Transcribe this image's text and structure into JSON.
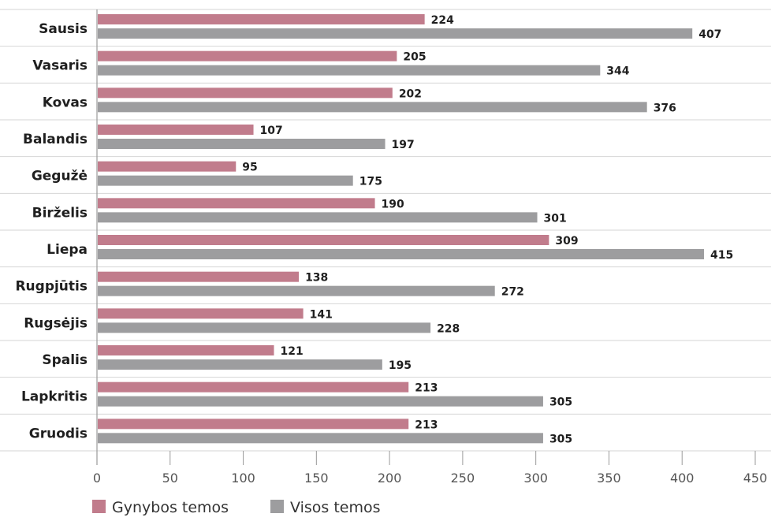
{
  "colors": {
    "series_a": "#c17c8c",
    "series_b": "#9d9d9f",
    "grid": "#d6d6d6",
    "axis": "#9a9a9a"
  },
  "legend": {
    "items": [
      {
        "label": "Gynybos temos"
      },
      {
        "label": "Visos temos"
      }
    ]
  },
  "chart_data": {
    "type": "bar",
    "orientation": "horizontal",
    "categories": [
      "Sausis",
      "Vasaris",
      "Kovas",
      "Balandis",
      "Gegužė",
      "Birželis",
      "Liepa",
      "Rugpjūtis",
      "Rugsėjis",
      "Spalis",
      "Lapkritis",
      "Gruodis"
    ],
    "series": [
      {
        "name": "Gynybos temos",
        "values": [
          224,
          205,
          202,
          107,
          95,
          190,
          309,
          138,
          141,
          121,
          213,
          213
        ]
      },
      {
        "name": "Visos temos",
        "values": [
          407,
          344,
          376,
          197,
          175,
          301,
          415,
          272,
          228,
          195,
          305,
          305
        ]
      }
    ],
    "xlim": [
      0,
      450
    ],
    "ticks": [
      0,
      50,
      100,
      150,
      200,
      250,
      300,
      350,
      400,
      450
    ],
    "grid": "horizontal separators between categories",
    "legend_position": "bottom-left",
    "title": "",
    "xlabel": "",
    "ylabel": ""
  }
}
